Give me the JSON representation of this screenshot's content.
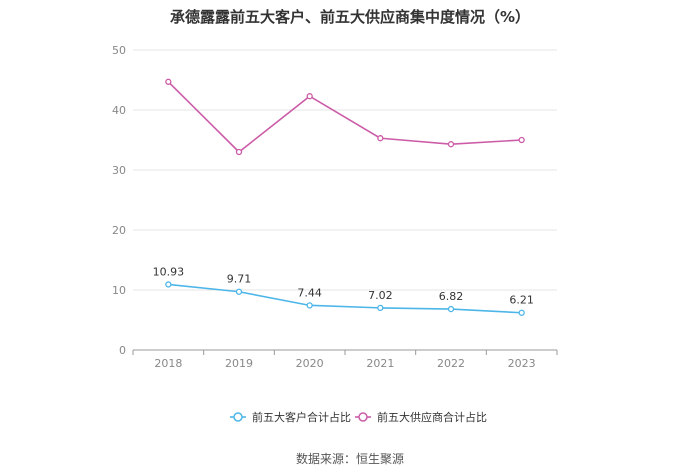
{
  "title": "承德露露前五大客户、前五大供应商集中度情况（%）",
  "source": "数据来源：恒生聚源",
  "chart_data": {
    "type": "line",
    "categories": [
      "2018",
      "2019",
      "2020",
      "2021",
      "2022",
      "2023"
    ],
    "series": [
      {
        "name": "前五大客户合计占比",
        "values": [
          10.93,
          9.71,
          7.44,
          7.02,
          6.82,
          6.21
        ],
        "color": "#4db6e8",
        "labels": [
          "10.93",
          "9.71",
          "7.44",
          "7.02",
          "6.82",
          "6.21"
        ]
      },
      {
        "name": "前五大供应商合计占比",
        "values": [
          44.7,
          33.0,
          42.3,
          35.3,
          34.3,
          35.0
        ],
        "color": "#cc5ca7"
      }
    ],
    "ylim": [
      0,
      50
    ],
    "yticks": [
      "0",
      "10",
      "20",
      "30",
      "40",
      "50"
    ],
    "grid": true,
    "legend": "bottom"
  }
}
